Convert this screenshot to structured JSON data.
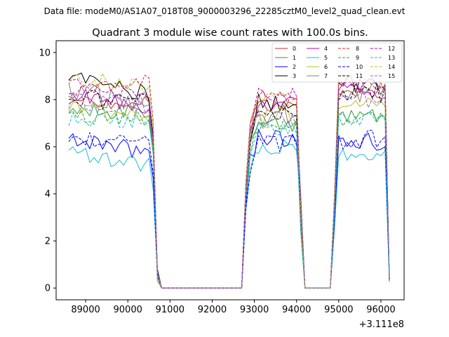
{
  "header": {
    "suptitle": "Data file: modeM0/AS1A07_018T08_9000003296_22285cztM0_level2_quad_clean.evt"
  },
  "chart_data": {
    "type": "line",
    "title": "Quadrant 3 module wise count rates with 100.0s bins.",
    "xlabel": "",
    "ylabel": "",
    "x_offset_label": "+3.111e8",
    "xlim": [
      88300,
      96550
    ],
    "ylim": [
      -0.5,
      10.5
    ],
    "x_ticks": [
      89000,
      90000,
      91000,
      92000,
      93000,
      94000,
      95000,
      96000
    ],
    "x_tick_labels": [
      "89000",
      "90000",
      "91000",
      "92000",
      "93000",
      "94000",
      "95000",
      "96000"
    ],
    "y_ticks": [
      0,
      2,
      4,
      6,
      8,
      10
    ],
    "y_tick_labels": [
      "0",
      "2",
      "4",
      "6",
      "8",
      "10"
    ],
    "grid": false,
    "legend_position": "top-right",
    "x_segments": [
      {
        "start": 88600,
        "end": 90700,
        "step": 100
      },
      {
        "start": 90800,
        "end": 92700,
        "step": 100
      },
      {
        "start": 92800,
        "end": 94100,
        "step": 100
      },
      {
        "start": 94200,
        "end": 94800,
        "step": 100
      },
      {
        "start": 94900,
        "end": 96200,
        "step": 100
      }
    ],
    "series": [
      {
        "name": "0",
        "color": "#d62728",
        "dash": false,
        "levels": [
          8.0,
          7.8,
          7.8,
          8.2
        ]
      },
      {
        "name": "1",
        "color": "#2ca02c",
        "dash": false,
        "levels": [
          7.5,
          7.4,
          7.0,
          7.3
        ]
      },
      {
        "name": "2",
        "color": "#0000ff",
        "dash": false,
        "levels": [
          6.2,
          5.8,
          6.4,
          6.2
        ]
      },
      {
        "name": "3",
        "color": "#000000",
        "dash": false,
        "levels": [
          8.8,
          8.1,
          7.8,
          8.6
        ]
      },
      {
        "name": "4",
        "color": "#c000c0",
        "dash": false,
        "levels": [
          8.3,
          7.6,
          7.8,
          8.4
        ]
      },
      {
        "name": "5",
        "color": "#17becf",
        "dash": false,
        "levels": [
          5.7,
          5.2,
          6.0,
          5.6
        ]
      },
      {
        "name": "6",
        "color": "#bcbd22",
        "dash": false,
        "levels": [
          7.6,
          7.3,
          7.3,
          7.7
        ]
      },
      {
        "name": "7",
        "color": "#7f7f7f",
        "dash": false,
        "levels": [
          8.4,
          7.7,
          7.4,
          8.3
        ]
      },
      {
        "name": "8",
        "color": "#d62728",
        "dash": true,
        "levels": [
          8.3,
          8.9,
          8.1,
          8.6
        ]
      },
      {
        "name": "9",
        "color": "#2ca02c",
        "dash": true,
        "levels": [
          7.3,
          7.2,
          6.9,
          7.2
        ]
      },
      {
        "name": "10",
        "color": "#0000ff",
        "dash": true,
        "levels": [
          6.3,
          6.1,
          6.1,
          6.3
        ]
      },
      {
        "name": "11",
        "color": "#000000",
        "dash": true,
        "levels": [
          8.1,
          7.9,
          7.6,
          8.3
        ]
      },
      {
        "name": "12",
        "color": "#c000c0",
        "dash": true,
        "levels": [
          8.7,
          8.1,
          8.2,
          8.7
        ]
      },
      {
        "name": "13",
        "color": "#17becf",
        "dash": true,
        "levels": [
          7.2,
          7.1,
          6.8,
          7.2
        ]
      },
      {
        "name": "14",
        "color": "#bcbd22",
        "dash": true,
        "levels": [
          8.9,
          8.6,
          8.0,
          8.9
        ]
      },
      {
        "name": "15",
        "color": "#9467bd",
        "dash": true,
        "levels": [
          8.0,
          7.8,
          7.2,
          7.9
        ]
      }
    ]
  }
}
